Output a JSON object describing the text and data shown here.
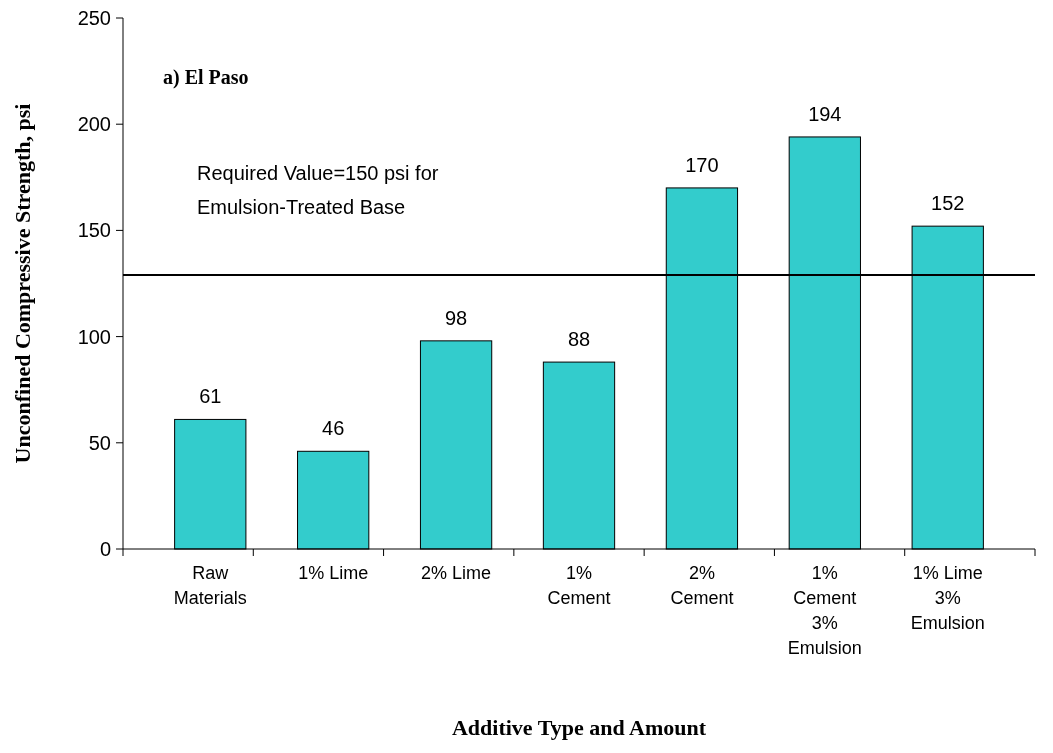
{
  "chart_data": {
    "type": "bar",
    "xlabel": "Additive Type and Amount",
    "ylabel": "Unconfined Compressive Strength, psi",
    "categories": [
      "Raw Materials",
      "1% Lime",
      "2% Lime",
      "1% Cement",
      "2% Cement",
      "1% Cement 3% Emulsion",
      "1% Lime 3% Emulsion"
    ],
    "values": [
      61,
      46,
      98,
      88,
      170,
      194,
      152
    ],
    "color": "#33cccc",
    "data_labels": true,
    "ylim": [
      0,
      250
    ],
    "yticks": [
      0,
      50,
      100,
      150,
      200,
      250
    ],
    "grid": false,
    "ref_lines": [
      {
        "axis": "y",
        "value": 129,
        "color": "#000000"
      }
    ],
    "annotations": [
      "a) El Paso",
      "Required Value=150 psi for Emulsion-Treated Base"
    ]
  }
}
